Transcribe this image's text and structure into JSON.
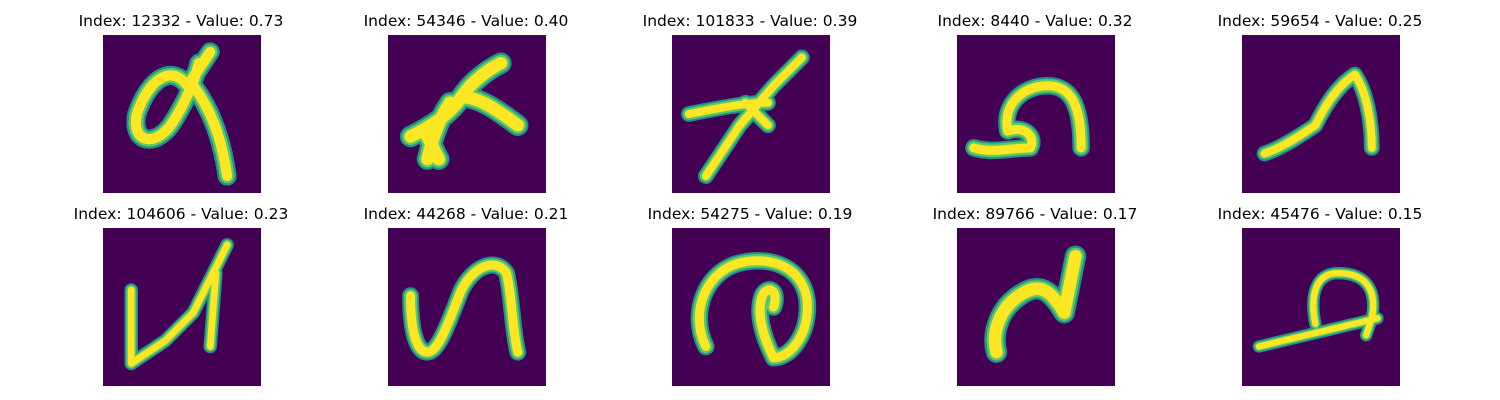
{
  "panels": [
    {
      "index": "12332",
      "value": "0.73",
      "caption": "Index: 12332 - Value: 0.73"
    },
    {
      "index": "54346",
      "value": "0.40",
      "caption": "Index: 54346 - Value: 0.40"
    },
    {
      "index": "101833",
      "value": "0.39",
      "caption": "Index: 101833 - Value: 0.39"
    },
    {
      "index": "8440",
      "value": "0.32",
      "caption": "Index: 8440 - Value: 0.32"
    },
    {
      "index": "59654",
      "value": "0.25",
      "caption": "Index: 59654 - Value: 0.25"
    },
    {
      "index": "104606",
      "value": "0.23",
      "caption": "Index: 104606 - Value: 0.23"
    },
    {
      "index": "44268",
      "value": "0.21",
      "caption": "Index: 44268 - Value: 0.21"
    },
    {
      "index": "54275",
      "value": "0.19",
      "caption": "Index: 54275 - Value: 0.19"
    },
    {
      "index": "89766",
      "value": "0.17",
      "caption": "Index: 89766 - Value: 0.17"
    },
    {
      "index": "45476",
      "value": "0.15",
      "caption": "Index: 45476 - Value: 0.15"
    }
  ],
  "colors": {
    "background": "#440154",
    "stroke_edge": "#21918c",
    "stroke_mid": "#5ec962",
    "stroke_core": "#fde725"
  }
}
